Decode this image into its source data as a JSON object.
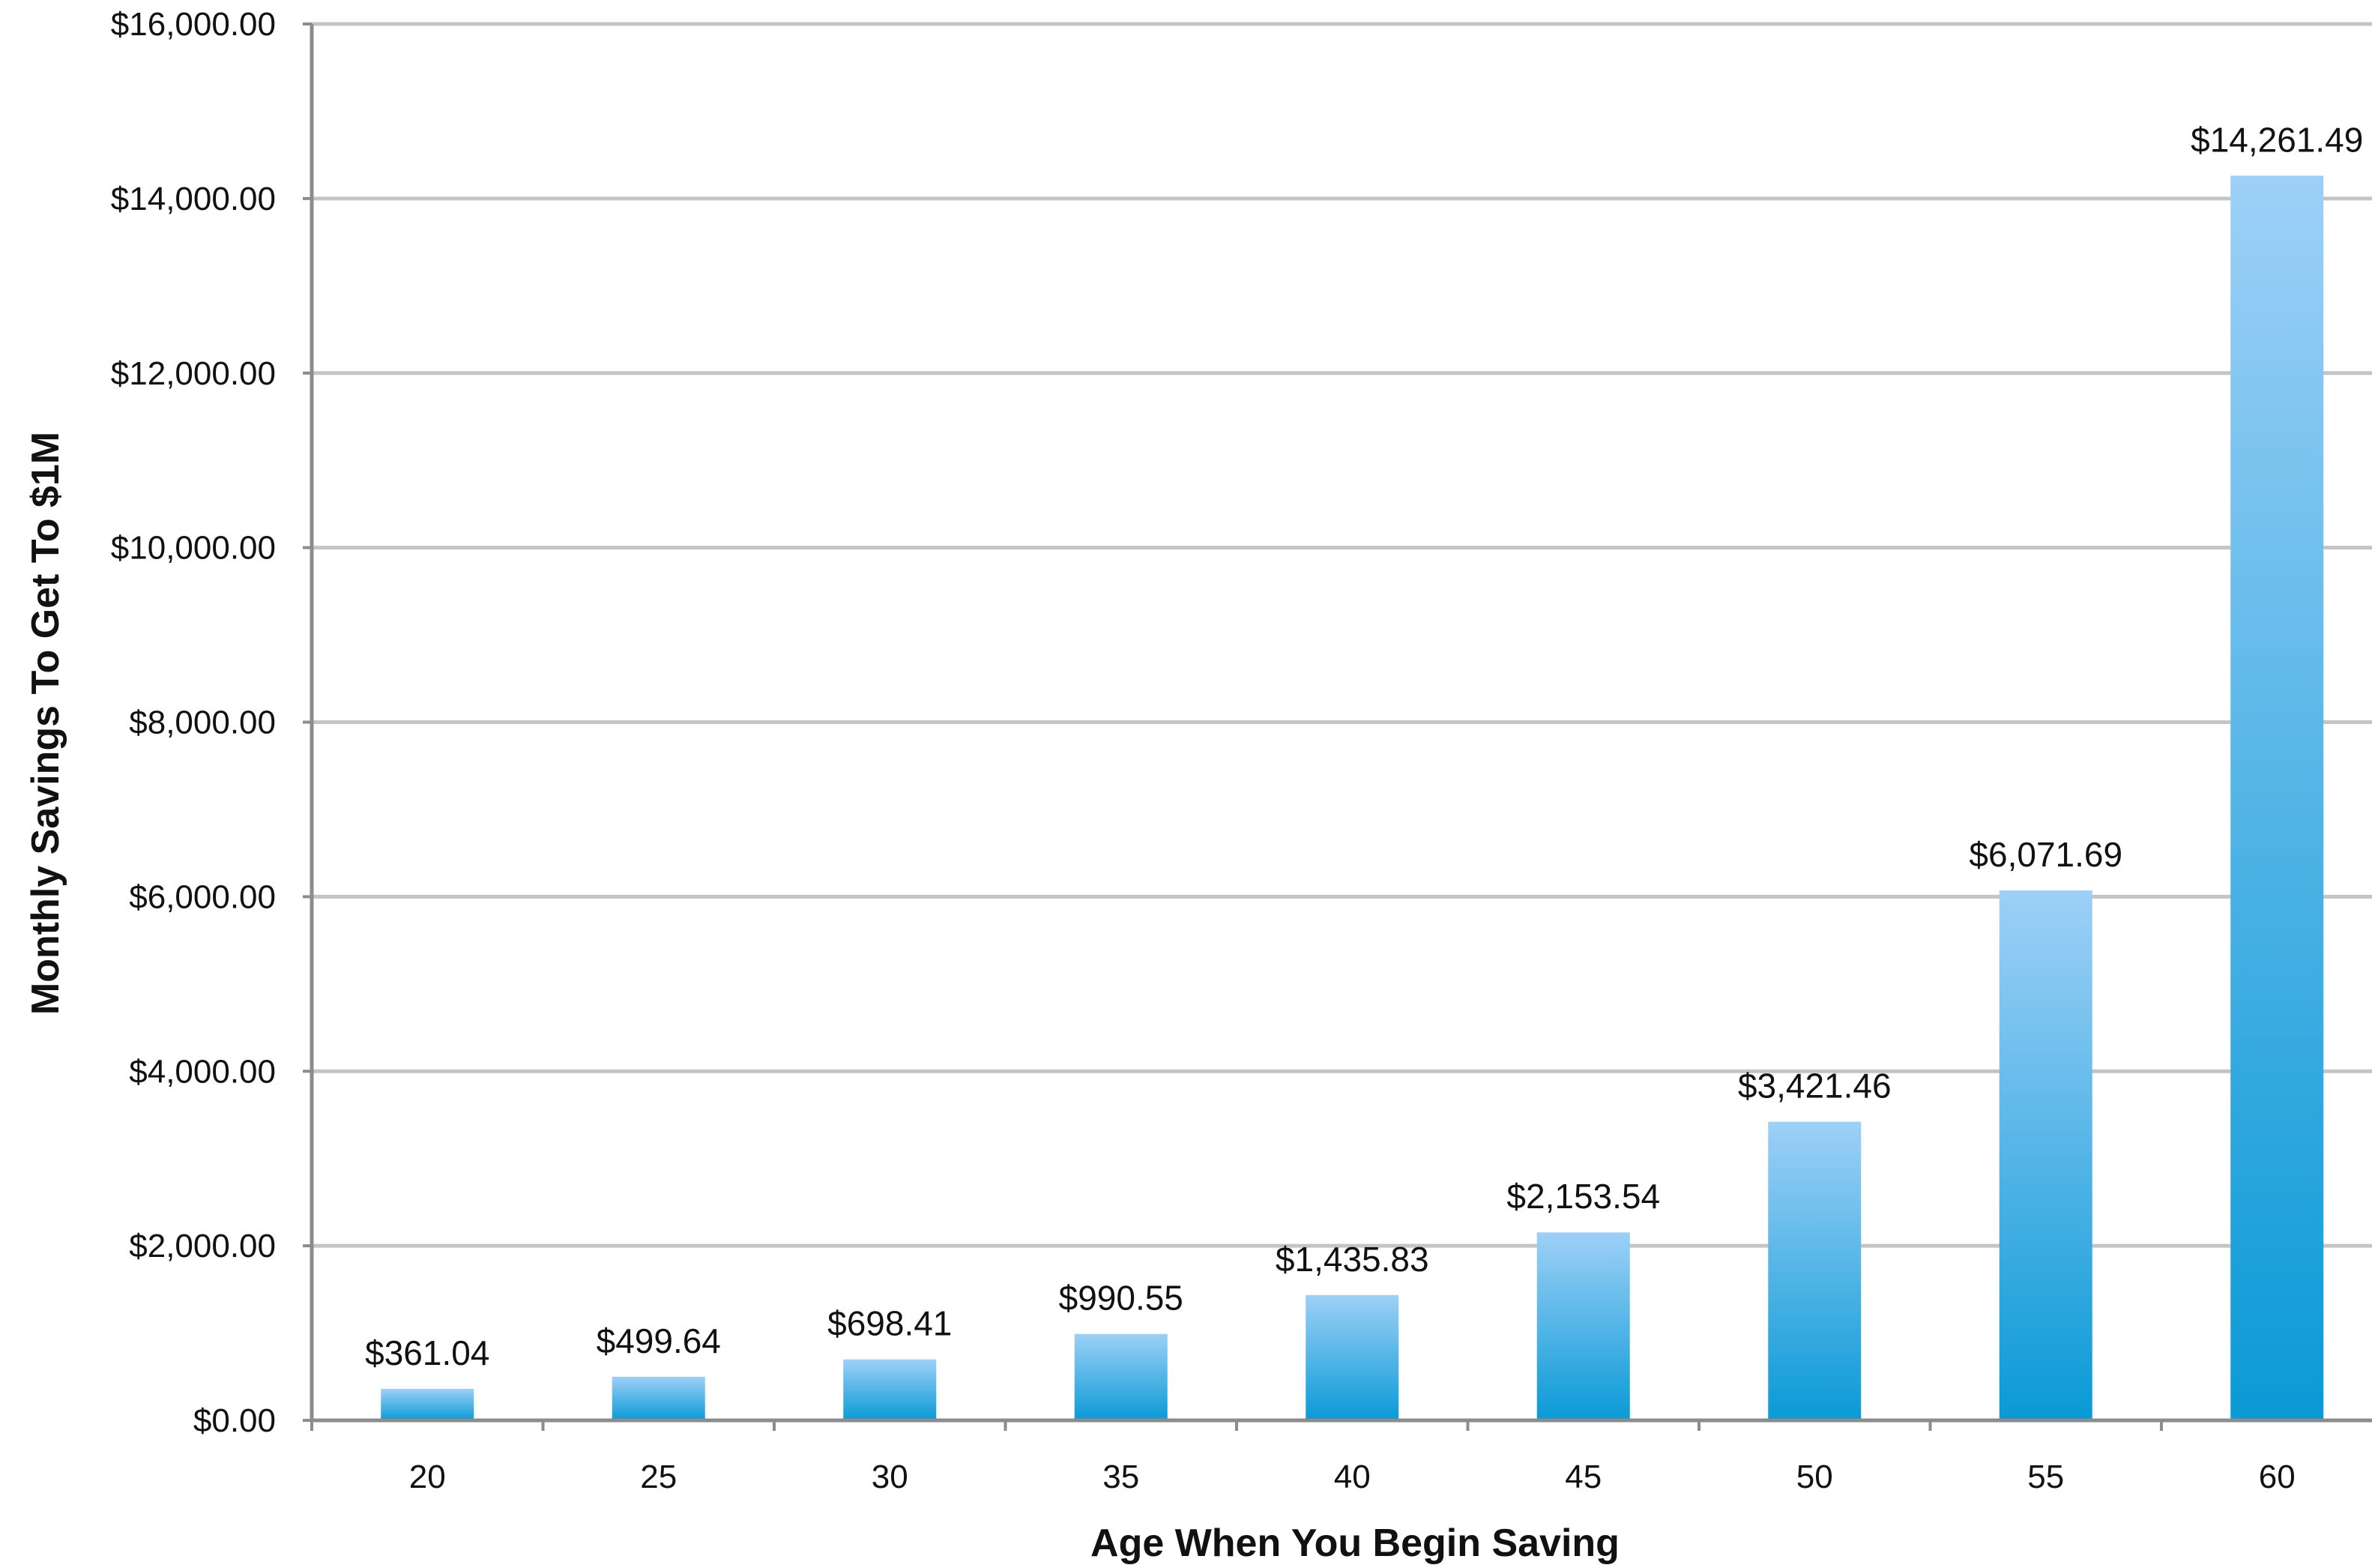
{
  "chart_data": {
    "type": "bar",
    "title": "",
    "xlabel": "Age When You Begin Saving",
    "ylabel": "Monthly Savings To Get To $1M",
    "categories": [
      "20",
      "25",
      "30",
      "35",
      "40",
      "45",
      "50",
      "55",
      "60"
    ],
    "values": [
      361.04,
      499.64,
      698.41,
      990.55,
      1435.83,
      2153.54,
      3421.46,
      6071.69,
      14261.49
    ],
    "value_labels": [
      "$361.04",
      "$499.64",
      "$698.41",
      "$990.55",
      "$1,435.83",
      "$2,153.54",
      "$3,421.46",
      "$6,071.69",
      "$14,261.49"
    ],
    "ylim": [
      0,
      16000
    ],
    "y_ticks": [
      0,
      2000,
      4000,
      6000,
      8000,
      10000,
      12000,
      14000,
      16000
    ],
    "y_tick_labels": [
      "$0.00",
      "$2,000.00",
      "$4,000.00",
      "$6,000.00",
      "$8,000.00",
      "$10,000.00",
      "$12,000.00",
      "$14,000.00",
      "$16,000.00"
    ],
    "grid": true,
    "legend": "none",
    "colors": {
      "bar_top": "#9dd0f7",
      "bar_bottom": "#0a9ad6",
      "grid": "#c4c4c4",
      "axis": "#8c8c8c",
      "text": "#111111"
    }
  }
}
